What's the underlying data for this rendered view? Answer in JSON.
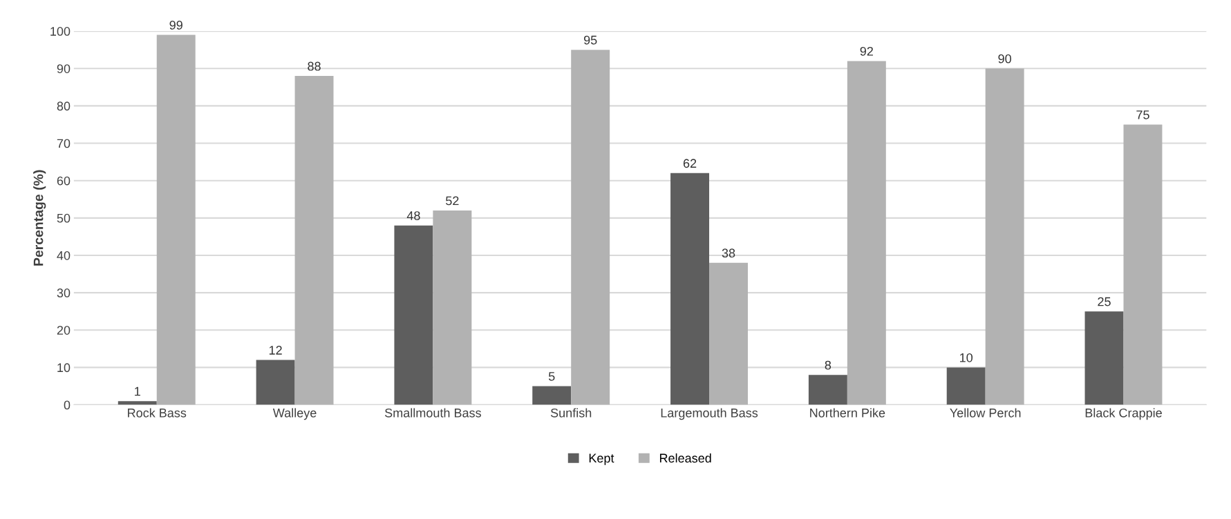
{
  "chart_data": {
    "type": "bar",
    "ylabel": "Percentage (%)",
    "categories": [
      "Rock Bass",
      "Walleye",
      "Smallmouth Bass",
      "Sunfish",
      "Largemouth Bass",
      "Northern Pike",
      "Yellow Perch",
      "Black Crappie"
    ],
    "series": [
      {
        "name": "Kept",
        "color": "#5e5e5e",
        "values": [
          1,
          12,
          48,
          5,
          62,
          8,
          10,
          25
        ]
      },
      {
        "name": "Released",
        "color": "#b2b2b2",
        "values": [
          99,
          88,
          52,
          95,
          38,
          92,
          90,
          75
        ]
      }
    ],
    "ylim": [
      0,
      100
    ],
    "yticks": [
      0,
      10,
      20,
      30,
      40,
      50,
      60,
      70,
      80,
      90,
      100
    ],
    "grid": "y",
    "legend": "bottom",
    "data_labels": true
  }
}
